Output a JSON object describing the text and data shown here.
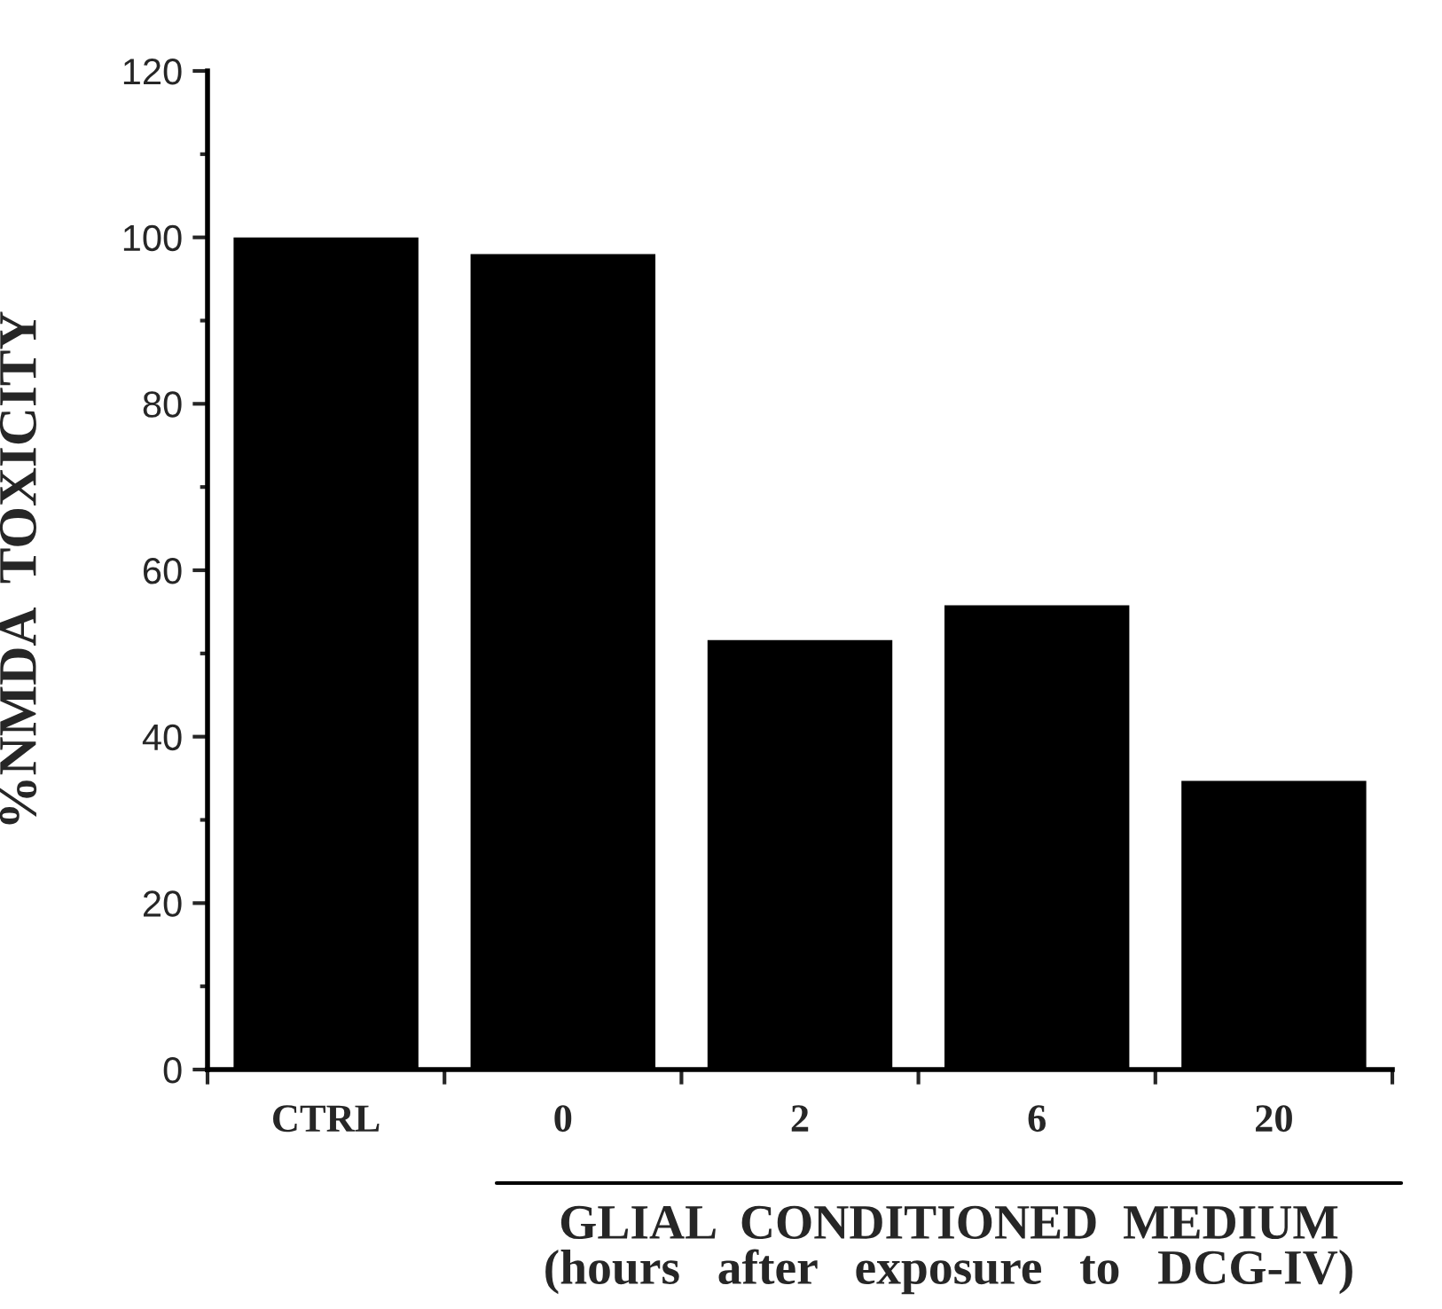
{
  "chart_data": {
    "type": "bar",
    "categories": [
      "CTRL",
      "0",
      "2",
      "6",
      "20"
    ],
    "values": [
      100,
      98,
      51.6,
      55.8,
      34.7
    ],
    "color": "#000000",
    "ylabel": "%NMDA  TOXICITY",
    "xlabel": "GLIAL  CONDITIONED  MEDIUM\n(hours   after   exposure   to   DCG-IV)",
    "ylim": [
      0,
      120
    ],
    "yticks": [
      0,
      {
        "value": 10,
        "label": null
      },
      20,
      {
        "value": 30,
        "label": null
      },
      40,
      {
        "value": 50,
        "label": null
      },
      60,
      {
        "value": 70,
        "label": null
      },
      80,
      {
        "value": 90,
        "label": null
      },
      100,
      {
        "value": 110,
        "label": null
      },
      120
    ],
    "grid": false,
    "legend": false
  }
}
